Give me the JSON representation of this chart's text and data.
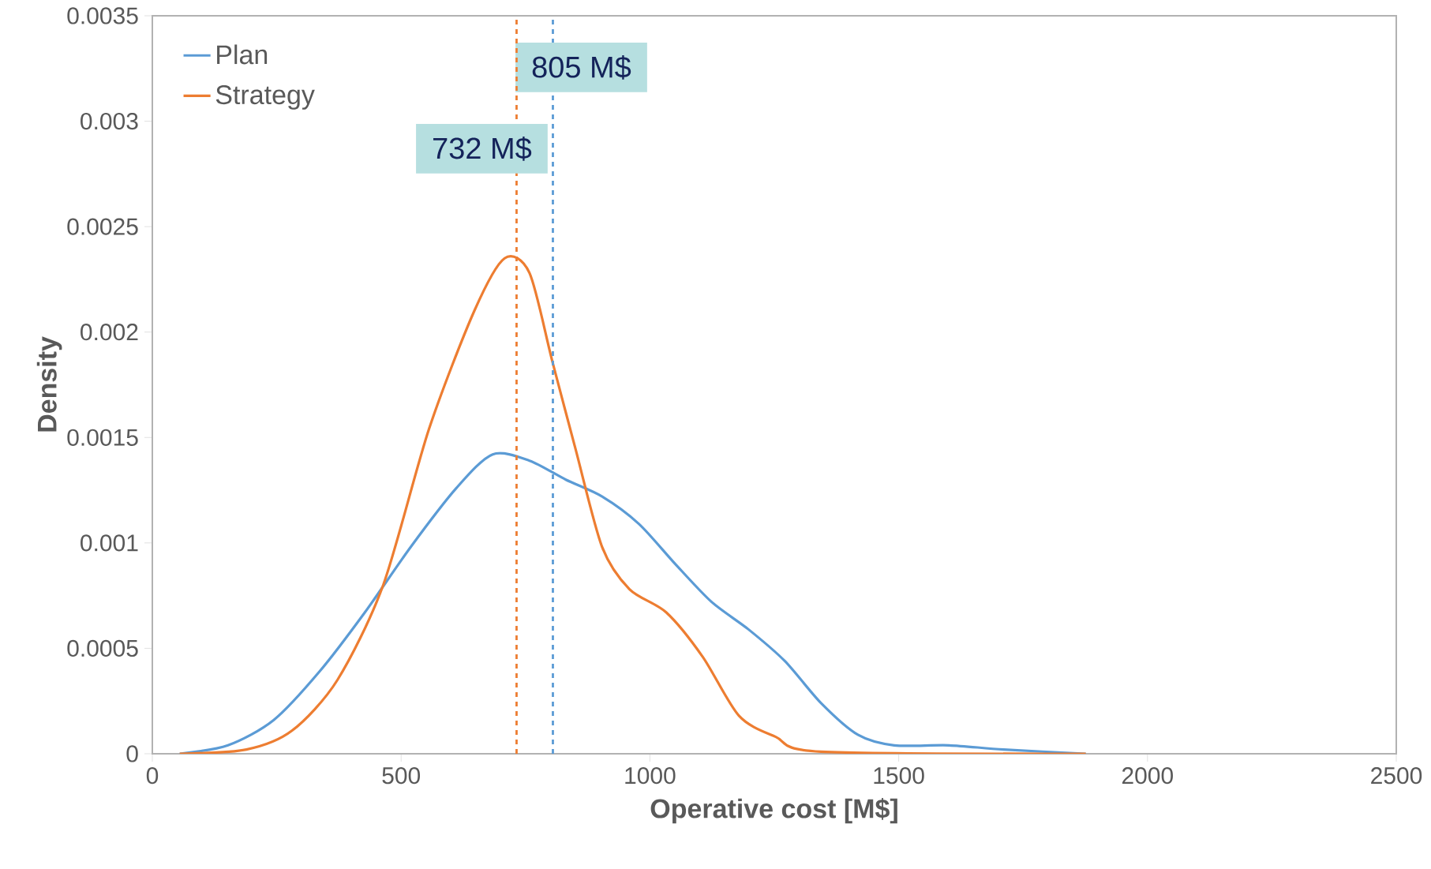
{
  "chart_data": {
    "type": "line",
    "xlabel": "Operative cost [M$]",
    "ylabel": "Density",
    "xlim": [
      0,
      2500
    ],
    "xticks": [
      0,
      500,
      1000,
      1500,
      2000,
      2500
    ],
    "ylim": [
      0,
      0.0035
    ],
    "yticks": [
      0,
      0.0005,
      0.001,
      0.0015,
      0.002,
      0.0025,
      0.003,
      0.0035
    ],
    "grid": false,
    "legend": "top left",
    "marker": "none",
    "line_style": "solid",
    "series": [
      {
        "name": "Plan",
        "color": "#5b9bd5",
        "x": [
          55,
          152,
          244,
          336,
          427,
          519,
          611,
          684,
          758,
          831,
          904,
          978,
          1051,
          1124,
          1198,
          1271,
          1344,
          1418,
          1491,
          1601,
          1711,
          1876
        ],
        "values": [
          0,
          4e-05,
          0.00016,
          0.00039,
          0.00067,
          0.00098,
          0.00126,
          0.00142,
          0.00139,
          0.0013,
          0.00122,
          0.00109,
          0.0009,
          0.00072,
          0.00059,
          0.00044,
          0.00024,
          9e-05,
          4e-05,
          4e-05,
          2e-05,
          0
        ]
      },
      {
        "name": "Strategy",
        "color": "#ed7d31",
        "x": [
          55,
          189,
          281,
          372,
          464,
          556,
          647,
          708,
          758,
          804,
          850,
          904,
          959,
          1033,
          1106,
          1179,
          1253,
          1344,
          1876
        ],
        "values": [
          0,
          2e-05,
          0.00011,
          0.00035,
          0.0008,
          0.00154,
          0.0021,
          0.00235,
          0.00228,
          0.00186,
          0.00145,
          0.00098,
          0.00078,
          0.00067,
          0.00046,
          0.00018,
          8e-05,
          1e-05,
          0
        ]
      }
    ],
    "ref_lines": [
      {
        "axis": "x",
        "value": 805,
        "label": "805 M$",
        "color": "#5b9bd5",
        "line_style": "dashed"
      },
      {
        "axis": "x",
        "value": 732,
        "label": "732 M$",
        "color": "#ed7d31",
        "line_style": "dashed"
      }
    ]
  }
}
